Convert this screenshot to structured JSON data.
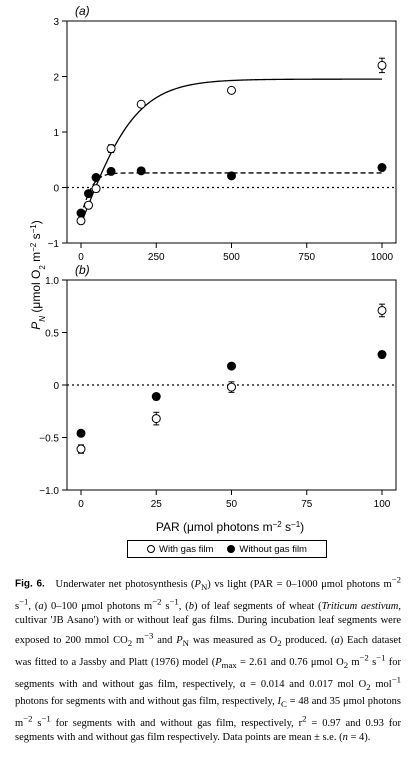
{
  "chart_data": [
    {
      "panel": "(a)",
      "type": "scatter",
      "xlim": [
        0,
        1000
      ],
      "ylim": [
        -1,
        3
      ],
      "x_ticks": [
        "0",
        "250",
        "500",
        "750",
        "1000"
      ],
      "y_ticks": [
        "-1",
        "0",
        "1",
        "2",
        "3"
      ],
      "reference_line_y": 0,
      "series": [
        {
          "name": "With gas film",
          "marker": "open",
          "points": [
            {
              "x": 0,
              "y": -0.6,
              "se": 0.05
            },
            {
              "x": 25,
              "y": -0.32,
              "se": 0.06
            },
            {
              "x": 50,
              "y": -0.02,
              "se": 0.06
            },
            {
              "x": 100,
              "y": 0.7,
              "se": 0.07
            },
            {
              "x": 200,
              "y": 1.5,
              "se": 0.03
            },
            {
              "x": 500,
              "y": 1.75,
              "se": 0.03
            },
            {
              "x": 1000,
              "y": 2.2,
              "se": 0.13
            }
          ],
          "fit": {
            "line": "solid",
            "pmax": 2.61,
            "alpha": 0.014,
            "ic": 48
          }
        },
        {
          "name": "Without gas film",
          "marker": "filled",
          "points": [
            {
              "x": 0,
              "y": -0.46,
              "se": 0.03
            },
            {
              "x": 25,
              "y": -0.11,
              "se": 0.03
            },
            {
              "x": 50,
              "y": 0.18,
              "se": 0.03
            },
            {
              "x": 100,
              "y": 0.29,
              "se": 0.03
            },
            {
              "x": 200,
              "y": 0.3,
              "se": 0.03
            },
            {
              "x": 500,
              "y": 0.21,
              "se": 0.03
            },
            {
              "x": 1000,
              "y": 0.36,
              "se": 0.04
            }
          ],
          "fit": {
            "line": "dashed",
            "pmax": 0.76,
            "alpha": 0.017,
            "ic": 35
          }
        }
      ]
    },
    {
      "panel": "(b)",
      "type": "scatter",
      "xlim": [
        0,
        100
      ],
      "ylim": [
        -1,
        1
      ],
      "x_ticks": [
        "0",
        "25",
        "50",
        "75",
        "100"
      ],
      "y_ticks": [
        "-1.0",
        "-0.5",
        "0",
        "0.5",
        "1.0"
      ],
      "reference_line_y": 0,
      "series": [
        {
          "name": "With gas film",
          "marker": "open",
          "points": [
            {
              "x": 0,
              "y": -0.61,
              "se": 0.04
            },
            {
              "x": 25,
              "y": -0.32,
              "se": 0.06
            },
            {
              "x": 50,
              "y": -0.02,
              "se": 0.05
            },
            {
              "x": 100,
              "y": 0.71,
              "se": 0.06
            }
          ]
        },
        {
          "name": "Without gas film",
          "marker": "filled",
          "points": [
            {
              "x": 0,
              "y": -0.46,
              "se": 0.02
            },
            {
              "x": 25,
              "y": -0.11,
              "se": 0.03
            },
            {
              "x": 50,
              "y": 0.18,
              "se": 0.02
            },
            {
              "x": 100,
              "y": 0.29,
              "se": 0.03
            }
          ]
        }
      ]
    }
  ],
  "axes": {
    "ylabel_main": "P",
    "ylabel_sub": "N",
    "ylabel_units": " (μmol O",
    "ylabel_o2_sub": "2",
    "ylabel_m": " m",
    "ylabel_m_exp": "−2",
    "ylabel_s": " s",
    "ylabel_s_exp": "−1",
    "ylabel_close": ")",
    "xlabel_main": "PAR (μmol photons m",
    "xlabel_exp": "−2",
    "xlabel_s": " s",
    "xlabel_s_exp": "−1",
    "xlabel_close": ")"
  },
  "legend": {
    "open_label": "With gas film",
    "filled_label": "Without gas film"
  },
  "caption": {
    "label": "Fig. 6.",
    "text": "Underwater net photosynthesis (PN) vs light (PAR = 0–1000 μmol photons m−2 s−1, (a) 0–100 μmol photons m−2 s−1, (b) of leaf segments of wheat (Triticum aestivum, cultivar 'JB Asano') with or without leaf gas films. During incubation leaf segments were exposed to 200 mmol CO2 m−3 and PN was measured as O2 produced. (a) Each dataset was fitted to a Jassby and Platt (1976) model (Pmax = 2.61 and 0.76 μmol O2 m−2 s−1 for segments with and without gas film, respectively, α = 0.014 and 0.017 mol O2 mol−1 photons for segments with and without gas film, respectively, IC = 48 and 35 μmol photons m−2 s−1 for segments with and without gas film, respectively, r2 = 0.97 and 0.93 for segments with and without gas film respectively. Data points are mean ± s.e. (n = 4)."
  }
}
